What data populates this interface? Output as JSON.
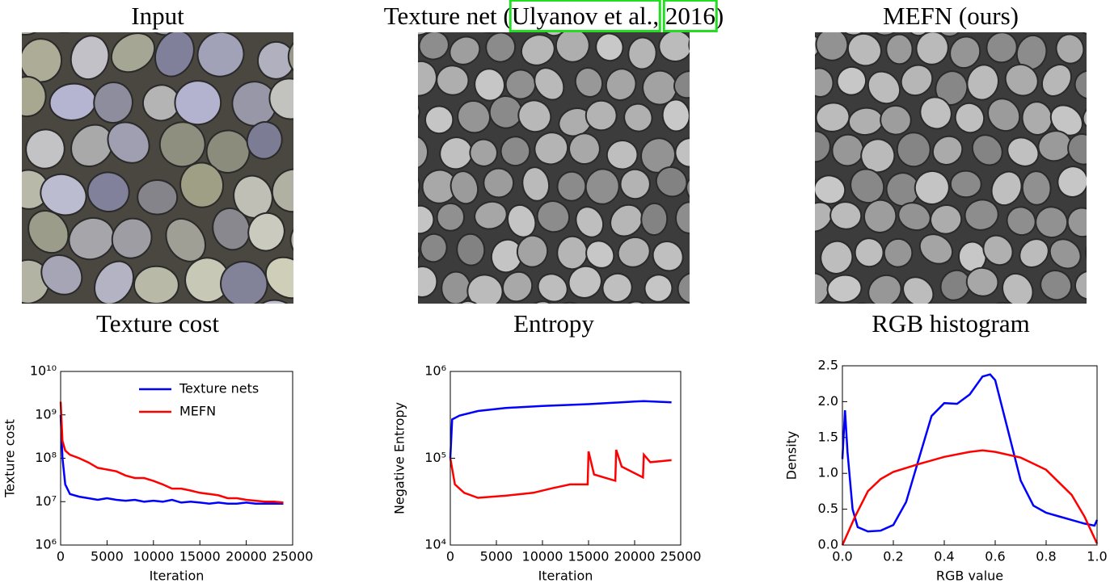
{
  "figure": {
    "panels": [
      {
        "title": "Input"
      },
      {
        "title_prefix": "Texture net (",
        "cite_author": "Ulyanov et al.,",
        "cite_year": "2016",
        "title_suffix": ")"
      },
      {
        "title": "MEFN (ours)"
      }
    ]
  },
  "chart_data": [
    {
      "type": "line",
      "title": "Texture cost",
      "xlabel": "Iteration",
      "ylabel": "Texture cost",
      "yscale": "log",
      "legend": "upper right",
      "xlim": [
        0,
        25000
      ],
      "xticks": [
        0,
        5000,
        10000,
        15000,
        20000,
        25000
      ],
      "ylim": [
        1000000,
        10000000000
      ],
      "yticks": [
        {
          "value": 1000000,
          "label": "10⁶"
        },
        {
          "value": 10000000,
          "label": "10⁷"
        },
        {
          "value": 100000000,
          "label": "10⁸"
        },
        {
          "value": 1000000000,
          "label": "10⁹"
        },
        {
          "value": 10000000000,
          "label": "10¹⁰"
        }
      ],
      "series": [
        {
          "name": "Texture nets",
          "color": "#0000ff",
          "x": [
            0,
            200,
            500,
            1000,
            2000,
            3000,
            4000,
            5000,
            6000,
            7000,
            8000,
            9000,
            10000,
            11000,
            12000,
            13000,
            14000,
            15000,
            16000,
            17000,
            18000,
            19000,
            20000,
            21000,
            22000,
            23000,
            24000
          ],
          "values": [
            1000000000,
            100000000,
            25000000,
            15000000,
            13000000,
            12000000,
            11000000,
            12000000,
            11000000,
            10500000,
            11000000,
            10000000,
            10500000,
            10000000,
            11000000,
            9500000,
            10000000,
            9500000,
            9000000,
            9500000,
            9000000,
            9000000,
            9500000,
            9000000,
            9000000,
            9000000,
            9000000
          ]
        },
        {
          "name": "MEFN",
          "color": "#ff0000",
          "x": [
            0,
            200,
            500,
            1000,
            2000,
            3000,
            4000,
            5000,
            6000,
            7000,
            8000,
            9000,
            10000,
            11000,
            12000,
            13000,
            14000,
            15000,
            16000,
            17000,
            18000,
            19000,
            20000,
            21000,
            22000,
            23000,
            24000
          ],
          "values": [
            2000000000,
            250000000,
            150000000,
            120000000,
            100000000,
            80000000,
            60000000,
            55000000,
            50000000,
            40000000,
            35000000,
            35000000,
            30000000,
            25000000,
            20000000,
            20000000,
            18000000,
            16000000,
            15000000,
            14000000,
            12000000,
            12000000,
            11000000,
            10500000,
            10000000,
            10000000,
            9500000
          ]
        }
      ]
    },
    {
      "type": "line",
      "title": "Entropy",
      "xlabel": "Iteration",
      "ylabel": "Negative Entropy",
      "yscale": "log",
      "xlim": [
        0,
        25000
      ],
      "xticks": [
        0,
        5000,
        10000,
        15000,
        20000,
        25000
      ],
      "ylim": [
        10000,
        1000000
      ],
      "yticks": [
        {
          "value": 10000,
          "label": "10⁴"
        },
        {
          "value": 100000,
          "label": "10⁵"
        },
        {
          "value": 1000000,
          "label": "10⁶"
        }
      ],
      "series": [
        {
          "color": "#0000ff",
          "x": [
            0,
            200,
            1000,
            3000,
            6000,
            10000,
            15000,
            20000,
            21000,
            24000
          ],
          "values": [
            100000,
            280000,
            310000,
            350000,
            380000,
            400000,
            420000,
            450000,
            455000,
            440000
          ]
        },
        {
          "color": "#ff0000",
          "x": [
            0,
            500,
            1500,
            3000,
            6000,
            9000,
            11000,
            13000,
            14900,
            15000,
            15600,
            17900,
            18000,
            18600,
            20900,
            21000,
            21700,
            24000
          ],
          "values": [
            100000,
            50000,
            40000,
            35000,
            37000,
            40000,
            45000,
            50000,
            50000,
            120000,
            65000,
            55000,
            125000,
            80000,
            60000,
            110000,
            90000,
            95000
          ]
        }
      ]
    },
    {
      "type": "line",
      "title": "RGB histogram",
      "xlabel": "RGB value",
      "ylabel": "Density",
      "yscale": "linear",
      "xlim": [
        0,
        1
      ],
      "xticks": [
        {
          "value": 0,
          "label": "0.0"
        },
        0.2,
        0.4,
        0.6,
        0.8,
        {
          "value": 1,
          "label": "1.0"
        }
      ],
      "ylim": [
        0,
        2.5
      ],
      "yticks": [
        {
          "value": 0,
          "label": "0.0"
        },
        0.5,
        {
          "value": 1,
          "label": "1.0"
        },
        1.5,
        {
          "value": 2,
          "label": "2.0"
        },
        2.5
      ],
      "series": [
        {
          "color": "#0000ff",
          "x": [
            0,
            0.01,
            0.02,
            0.04,
            0.06,
            0.1,
            0.15,
            0.2,
            0.25,
            0.3,
            0.35,
            0.4,
            0.45,
            0.5,
            0.55,
            0.58,
            0.6,
            0.65,
            0.7,
            0.75,
            0.8,
            0.85,
            0.9,
            0.95,
            0.99,
            1.0
          ],
          "values": [
            1.2,
            1.88,
            1.3,
            0.5,
            0.25,
            0.19,
            0.2,
            0.28,
            0.6,
            1.2,
            1.8,
            1.98,
            1.97,
            2.1,
            2.35,
            2.38,
            2.3,
            1.6,
            0.9,
            0.55,
            0.45,
            0.4,
            0.35,
            0.3,
            0.27,
            0.35
          ]
        },
        {
          "color": "#ff0000",
          "x": [
            0,
            0.05,
            0.1,
            0.15,
            0.2,
            0.3,
            0.4,
            0.5,
            0.55,
            0.6,
            0.7,
            0.8,
            0.9,
            0.95,
            1.0
          ],
          "values": [
            0,
            0.4,
            0.75,
            0.92,
            1.02,
            1.13,
            1.23,
            1.3,
            1.32,
            1.3,
            1.22,
            1.05,
            0.7,
            0.4,
            0.02
          ]
        }
      ]
    }
  ]
}
